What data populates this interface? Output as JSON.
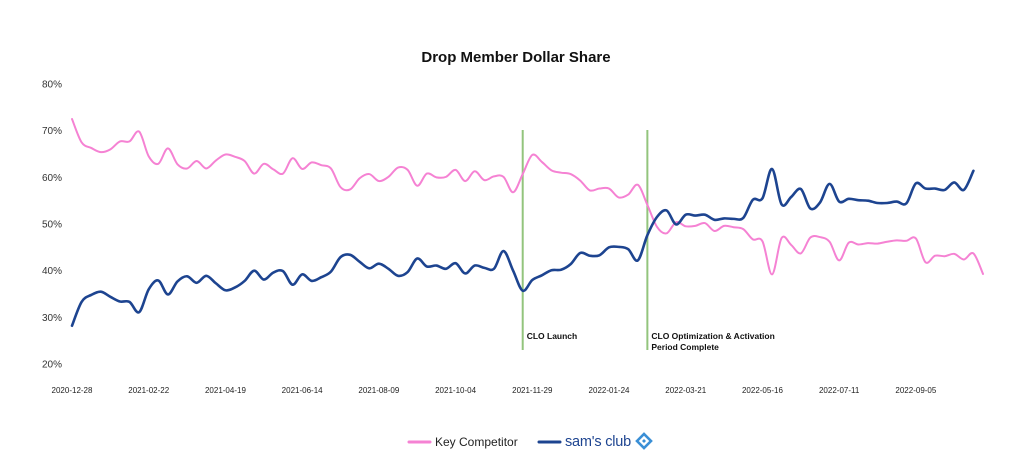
{
  "chart_data": {
    "type": "line",
    "title": "Drop Member Dollar Share",
    "xlabel": "",
    "ylabel": "",
    "yticks": [
      "20%",
      "30%",
      "40%",
      "50%",
      "60%",
      "70%",
      "80%"
    ],
    "ylim": [
      20,
      80
    ],
    "grid": false,
    "legend_position": "bottom",
    "x_start": "2020-12-28",
    "x_step_days": 7,
    "x_tick_labels": [
      "2020-12-28",
      "2021-02-22",
      "2021-04-19",
      "2021-06-14",
      "2021-08-09",
      "2021-10-04",
      "2021-11-29",
      "2022-01-24",
      "2022-03-21",
      "2022-05-16",
      "2022-07-11",
      "2022-09-05"
    ],
    "annotations": [
      {
        "date": "2021-11-22",
        "line1": "CLO Launch",
        "line2": ""
      },
      {
        "date": "2022-02-21",
        "line1": "CLO Optimization & Activation",
        "line2": "Period Complete"
      }
    ],
    "series": [
      {
        "name": "Key Competitor",
        "color": "#f582d3",
        "values": [
          72.5,
          67.5,
          66.3,
          65.4,
          66.0,
          67.7,
          67.7,
          69.8,
          64.5,
          62.9,
          66.2,
          62.8,
          61.9,
          63.5,
          61.9,
          63.6,
          64.9,
          64.4,
          63.5,
          60.8,
          62.9,
          61.7,
          60.8,
          64.1,
          61.8,
          63.2,
          62.6,
          61.9,
          57.9,
          57.4,
          59.8,
          60.7,
          59.2,
          60.1,
          62.1,
          61.6,
          58.2,
          60.8,
          60.0,
          60.1,
          61.6,
          59.2,
          61.3,
          59.4,
          60.2,
          60.1,
          56.8,
          60.7,
          64.8,
          63.3,
          61.5,
          61.0,
          60.7,
          59.3,
          57.2,
          57.6,
          57.6,
          55.7,
          56.3,
          58.4,
          54.1,
          49.4,
          48.0,
          50.4,
          49.5,
          49.6,
          50.2,
          48.5,
          49.6,
          49.3,
          48.9,
          46.7,
          46.3,
          39.2,
          47.0,
          45.5,
          43.7,
          47.1,
          47.2,
          46.2,
          42.2,
          46.0,
          45.6,
          45.9,
          45.8,
          46.2,
          46.5,
          46.4,
          46.9,
          41.8,
          43.2,
          43.1,
          43.6,
          42.4,
          43.7,
          39.3
        ]
      },
      {
        "name": "sam's club",
        "color": "#1d4490",
        "values": [
          28.2,
          33.3,
          34.8,
          35.5,
          34.4,
          33.4,
          33.3,
          31.1,
          36.0,
          37.9,
          34.9,
          37.7,
          38.8,
          37.4,
          38.9,
          37.3,
          35.8,
          36.4,
          37.8,
          40.0,
          38.1,
          39.6,
          39.9,
          37.0,
          39.2,
          37.8,
          38.6,
          39.8,
          42.9,
          43.4,
          41.9,
          40.5,
          41.5,
          40.4,
          38.9,
          39.7,
          42.6,
          40.9,
          41.1,
          40.4,
          41.6,
          39.4,
          41.1,
          40.6,
          40.4,
          44.2,
          40.0,
          35.7,
          38.0,
          39.0,
          40.1,
          40.2,
          41.4,
          43.8,
          43.2,
          43.3,
          45.0,
          45.1,
          44.6,
          42.2,
          47.6,
          51.5,
          52.9,
          49.9,
          52.0,
          51.8,
          52.0,
          50.9,
          51.2,
          51.1,
          51.3,
          55.2,
          55.5,
          61.8,
          54.2,
          55.8,
          57.5,
          53.3,
          54.6,
          58.6,
          54.8,
          55.4,
          55.1,
          55.0,
          54.5,
          54.5,
          54.8,
          54.4,
          58.7,
          57.6,
          57.6,
          57.3,
          58.9,
          57.3,
          61.4
        ]
      }
    ]
  },
  "legend": {
    "key_competitor_label": "Key Competitor",
    "sams_label": "sam's club"
  }
}
